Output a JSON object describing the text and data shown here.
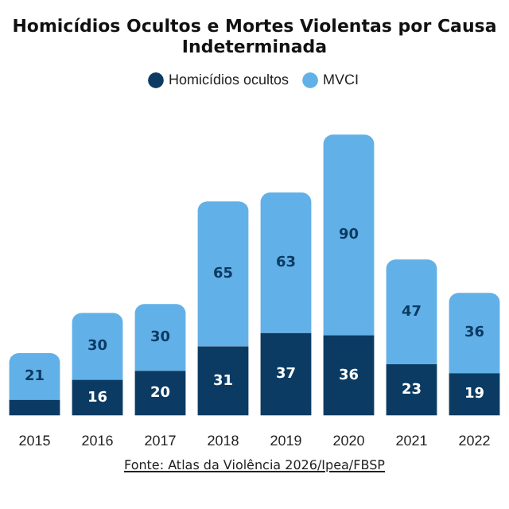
{
  "chart_data": {
    "type": "bar",
    "title": "Homicídios Ocultos e Mortes Violentas por Causa Indeterminada",
    "stacked": true,
    "legend": "top",
    "categories": [
      "2015",
      "2016",
      "2017",
      "2018",
      "2019",
      "2020",
      "2021",
      "2022"
    ],
    "series": [
      {
        "name": "Homicídios ocultos",
        "color": "#0b3b63",
        "values": [
          7,
          16,
          20,
          31,
          37,
          36,
          23,
          19
        ],
        "value_labels": [
          null,
          "16",
          "20",
          "31",
          "37",
          "36",
          "23",
          "19"
        ]
      },
      {
        "name": "MVCI",
        "color": "#62b0e8",
        "values": [
          21,
          30,
          30,
          65,
          63,
          90,
          47,
          36
        ],
        "value_labels": [
          "21",
          "30",
          "30",
          "65",
          "63",
          "90",
          "47",
          "36"
        ]
      }
    ],
    "annotations": [
      "Fonte: Atlas da Violência 2026/Ipea/FBSP"
    ]
  }
}
